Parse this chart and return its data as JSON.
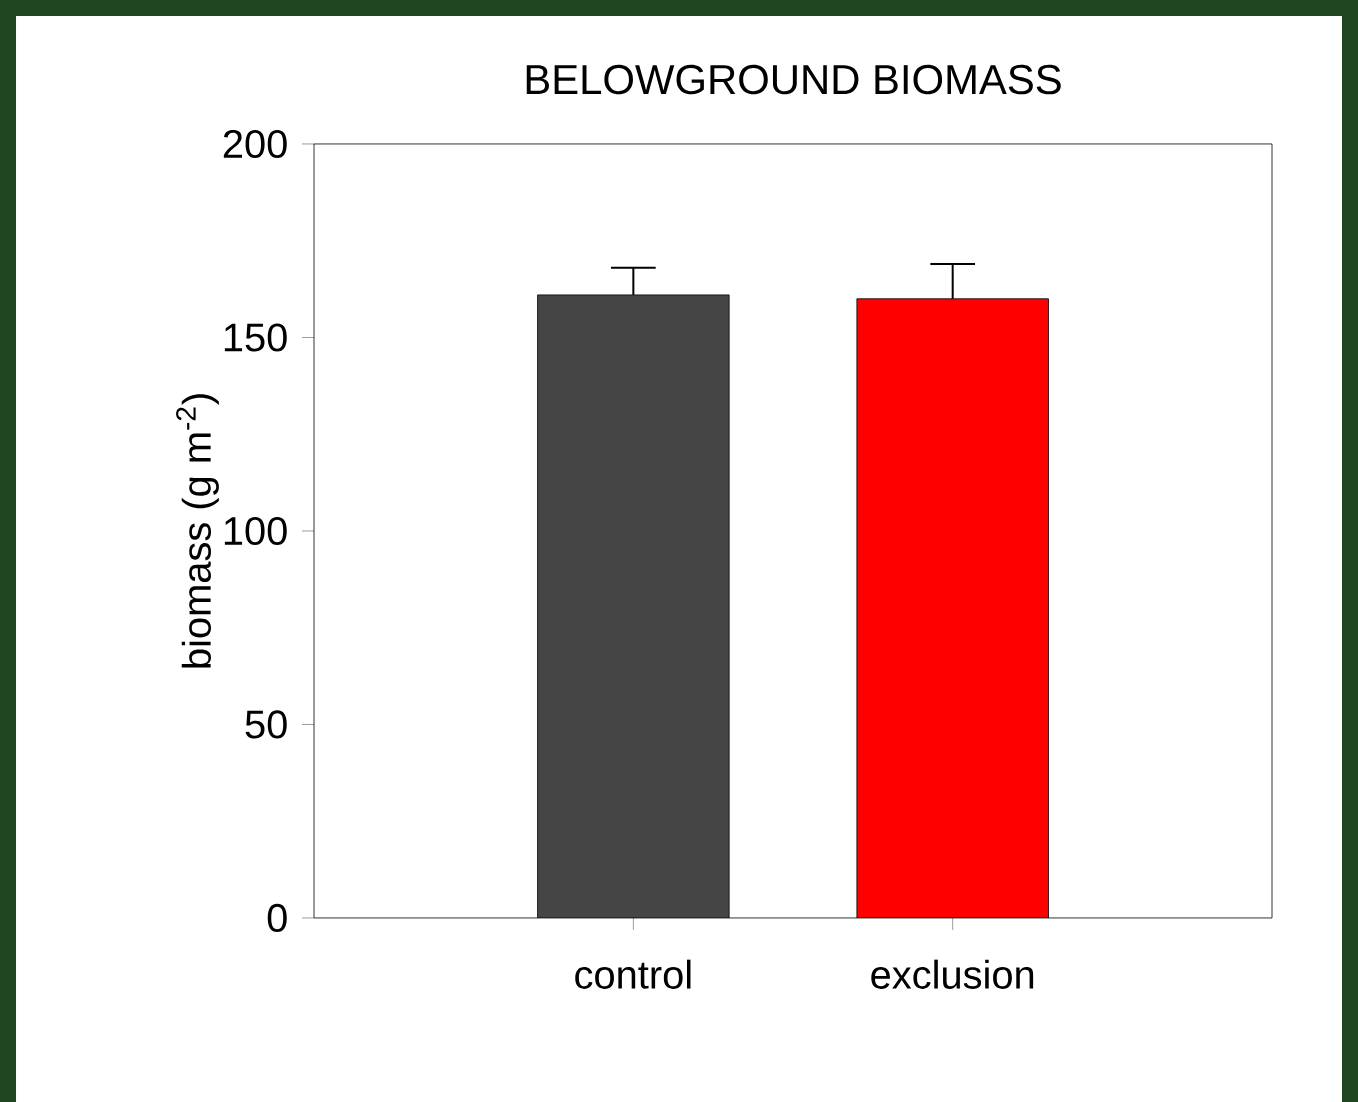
{
  "chart_data": {
    "type": "bar",
    "title": "BELOWGROUND BIOMASS",
    "ylabel": "biomass (g m$^{-2}$)",
    "categories": [
      "control",
      "exclusion"
    ],
    "values": [
      161,
      160
    ],
    "colors": [
      "#454545",
      "#ff0000"
    ],
    "errors": [
      [
        161,
        168
      ],
      [
        160,
        169
      ]
    ],
    "ylim": [
      0,
      200
    ],
    "yticks": [
      0,
      50,
      100,
      150,
      200
    ],
    "grid": false
  }
}
